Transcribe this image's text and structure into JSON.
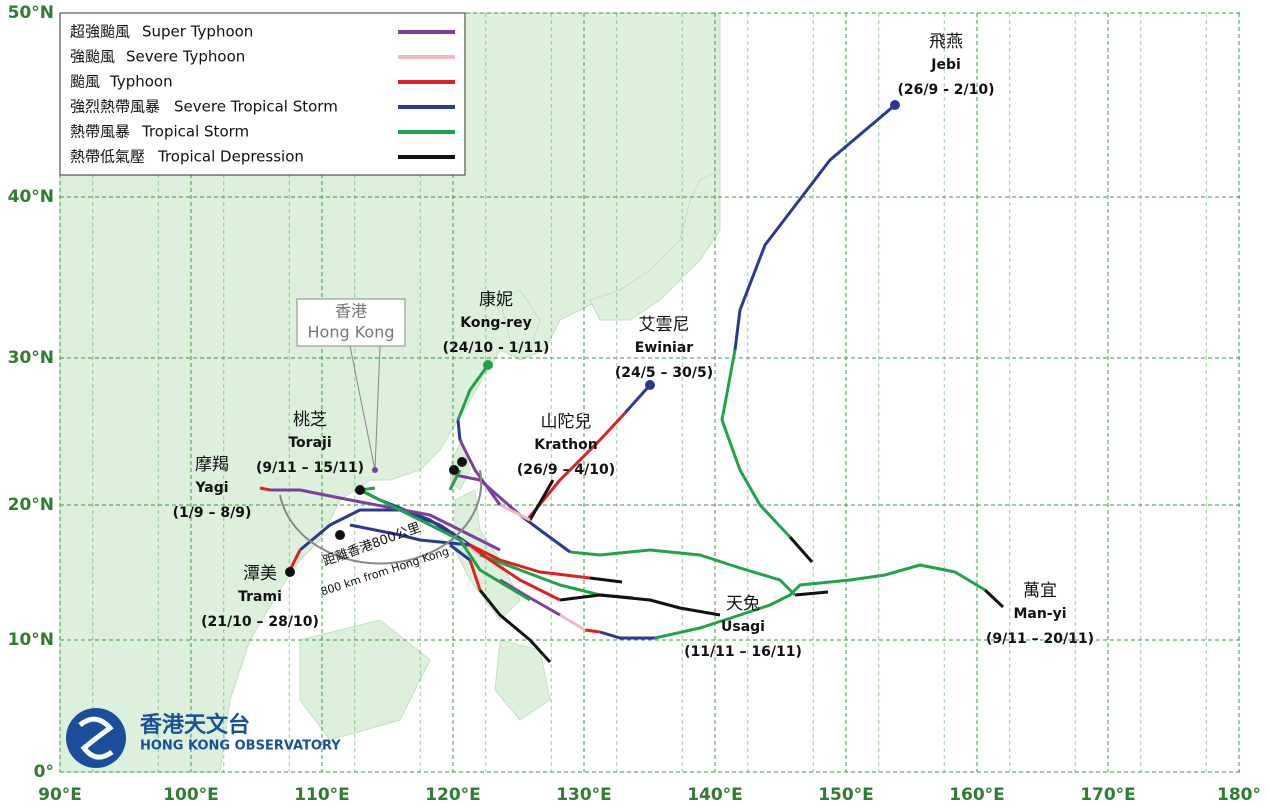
{
  "map": {
    "lat_labels": [
      "50°N",
      "40°N",
      "30°N",
      "20°N",
      "10°N",
      "0°"
    ],
    "lon_labels": [
      "90°E",
      "100°E",
      "110°E",
      "120°E",
      "130°E",
      "140°E",
      "150°E",
      "160°E",
      "170°E",
      "180°"
    ]
  },
  "legend": [
    {
      "zh": "超強颱風",
      "en": "Super Typhoon",
      "color": "#7b3f9e"
    },
    {
      "zh": "強颱風",
      "en": "Severe Typhoon",
      "color": "#f2b8bf"
    },
    {
      "zh": "颱風",
      "en": "Typhoon",
      "color": "#e0201f"
    },
    {
      "zh": "強烈熱帶風暴",
      "en": "Severe Tropical Storm",
      "color": "#2b3990"
    },
    {
      "zh": "熱帶風暴",
      "en": "Tropical Storm",
      "color": "#1fa34a"
    },
    {
      "zh": "熱帶低氣壓",
      "en": "Tropical Depression",
      "color": "#111111"
    }
  ],
  "storms": [
    {
      "zh": "飛燕",
      "en": "Jebi",
      "dates": "(26/9 - 2/10)"
    },
    {
      "zh": "艾雲尼",
      "en": "Ewiniar",
      "dates": "(24/5 – 30/5)"
    },
    {
      "zh": "康妮",
      "en": "Kong-rey",
      "dates": "(24/10 - 1/11)"
    },
    {
      "zh": "山陀兒",
      "en": "Krathon",
      "dates": "(26/9 – 4/10)"
    },
    {
      "zh": "桃芝",
      "en": "Toraji",
      "dates": "(9/11 – 15/11)"
    },
    {
      "zh": "摩羯",
      "en": "Yagi",
      "dates": "(1/9 – 8/9)"
    },
    {
      "zh": "潭美",
      "en": "Trami",
      "dates": "(21/10 – 28/10)"
    },
    {
      "zh": "天兔",
      "en": "Usagi",
      "dates": "(11/11 – 16/11)"
    },
    {
      "zh": "萬宜",
      "en": "Man-yi",
      "dates": "(9/11 – 20/11)"
    }
  ],
  "hong_kong": {
    "zh": "香港",
    "en": "Hong Kong"
  },
  "range_label": {
    "zh": "距離香港800公里",
    "en": "800 km from Hong Kong"
  },
  "logo": {
    "zh": "香港天文台",
    "en": "HONG KONG OBSERVATORY"
  }
}
